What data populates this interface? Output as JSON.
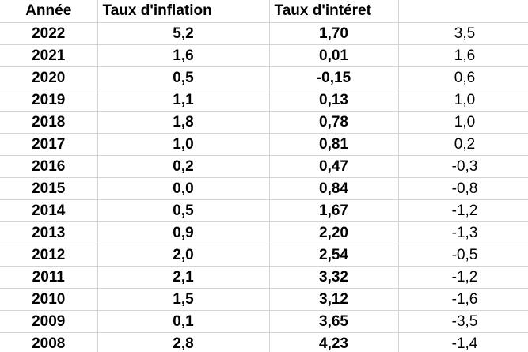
{
  "headers": {
    "year": "Année",
    "inflation": "Taux d'inflation",
    "rate": "Taux d'intéret",
    "diff": ""
  },
  "rows": [
    {
      "year": "2022",
      "inflation": "5,2",
      "rate": "1,70",
      "diff": "3,5"
    },
    {
      "year": "2021",
      "inflation": "1,6",
      "rate": "0,01",
      "diff": "1,6"
    },
    {
      "year": "2020",
      "inflation": "0,5",
      "rate": "-0,15",
      "diff": "0,6"
    },
    {
      "year": "2019",
      "inflation": "1,1",
      "rate": "0,13",
      "diff": "1,0"
    },
    {
      "year": "2018",
      "inflation": "1,8",
      "rate": "0,78",
      "diff": "1,0"
    },
    {
      "year": "2017",
      "inflation": "1,0",
      "rate": "0,81",
      "diff": "0,2"
    },
    {
      "year": "2016",
      "inflation": "0,2",
      "rate": "0,47",
      "diff": "-0,3"
    },
    {
      "year": "2015",
      "inflation": "0,0",
      "rate": "0,84",
      "diff": "-0,8"
    },
    {
      "year": "2014",
      "inflation": "0,5",
      "rate": "1,67",
      "diff": "-1,2"
    },
    {
      "year": "2013",
      "inflation": "0,9",
      "rate": "2,20",
      "diff": "-1,3"
    },
    {
      "year": "2012",
      "inflation": "2,0",
      "rate": "2,54",
      "diff": "-0,5"
    },
    {
      "year": "2011",
      "inflation": "2,1",
      "rate": "3,32",
      "diff": "-1,2"
    },
    {
      "year": "2010",
      "inflation": "1,5",
      "rate": "3,12",
      "diff": "-1,6"
    },
    {
      "year": "2009",
      "inflation": "0,1",
      "rate": "3,65",
      "diff": "-3,5"
    },
    {
      "year": "2008",
      "inflation": "2,8",
      "rate": "4,23",
      "diff": "-1,4"
    }
  ]
}
